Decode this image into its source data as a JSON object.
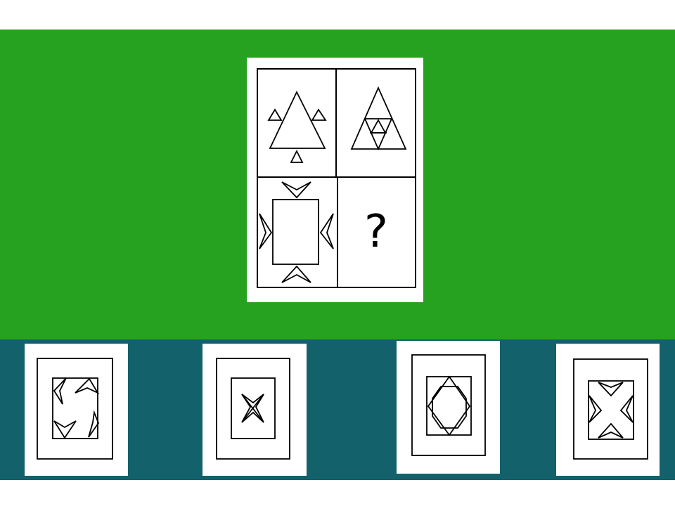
{
  "colors": {
    "puzzle_background": "#27a220",
    "choices_background": "#12616b",
    "card": "#ffffff",
    "stroke": "#000000"
  },
  "puzzle": {
    "question_mark": "?",
    "cells": [
      {
        "position": "top-left",
        "shape": "large triangle with three small outward triangles"
      },
      {
        "position": "top-right",
        "shape": "triangle with nested inner triangles"
      },
      {
        "position": "bottom-left",
        "shape": "rectangle with four arrowhead markers on each side"
      },
      {
        "position": "bottom-right",
        "shape": "missing"
      }
    ]
  },
  "choices": [
    {
      "id": "choice-a",
      "label": "",
      "shape": "rectangle with four curved arrowheads in corners"
    },
    {
      "id": "choice-b",
      "label": "",
      "shape": "rectangle with four-point star"
    },
    {
      "id": "choice-c",
      "label": "",
      "shape": "rectangle with diamond and octagon"
    },
    {
      "id": "choice-d",
      "label": "",
      "shape": "rectangle with four inward arrowheads"
    }
  ]
}
